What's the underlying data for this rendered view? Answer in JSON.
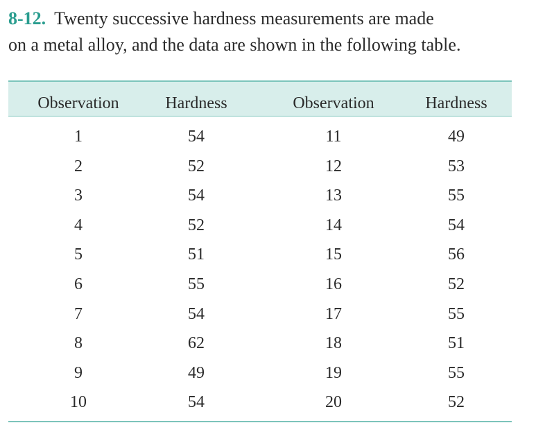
{
  "problem": {
    "number": "8-12.",
    "lines": [
      "Twenty successive hardness measurements are made",
      "on a metal alloy, and the data are shown in the following table."
    ]
  },
  "table": {
    "header": [
      "Observation",
      "Hardness",
      "Observation",
      "Hardness"
    ],
    "rows": [
      [
        1,
        54,
        11,
        49
      ],
      [
        2,
        52,
        12,
        53
      ],
      [
        3,
        54,
        13,
        55
      ],
      [
        4,
        52,
        14,
        54
      ],
      [
        5,
        51,
        15,
        56
      ],
      [
        6,
        55,
        16,
        52
      ],
      [
        7,
        54,
        17,
        55
      ],
      [
        8,
        62,
        18,
        51
      ],
      [
        9,
        49,
        19,
        55
      ],
      [
        10,
        54,
        20,
        52
      ]
    ]
  }
}
